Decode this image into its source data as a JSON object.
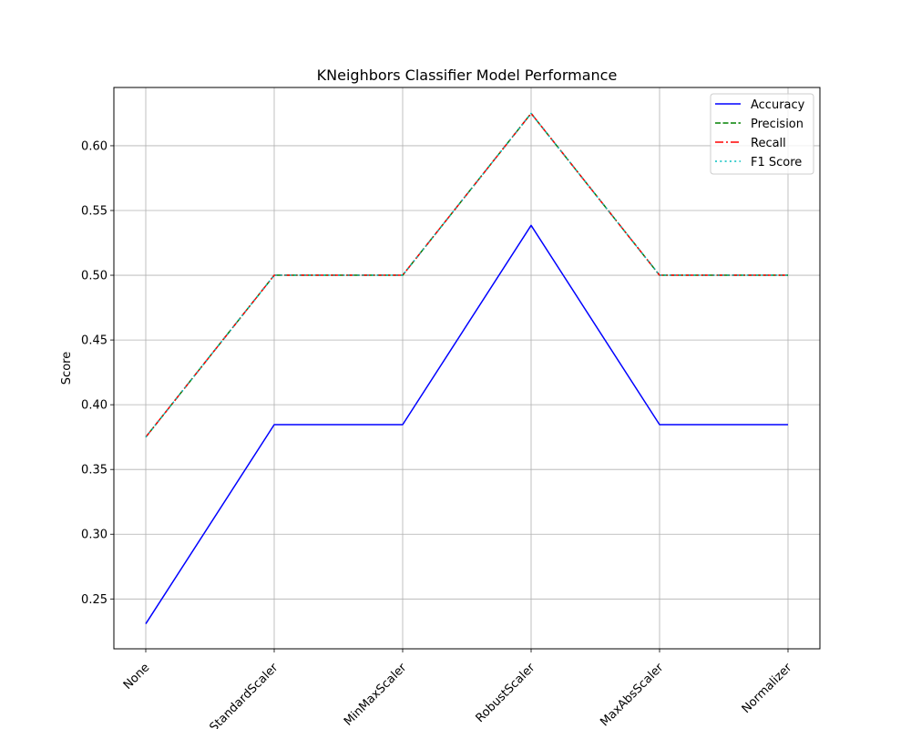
{
  "chart_data": {
    "type": "line",
    "title": "KNeighbors Classifier Model Performance",
    "xlabel": "",
    "ylabel": "Score",
    "categories": [
      "None",
      "StandardScaler",
      "MinMaxScaler",
      "RobustScaler",
      "MaxAbsScaler",
      "Normalizer"
    ],
    "ylim": [
      0.2115,
      0.645
    ],
    "yticks": [
      0.25,
      0.3,
      0.35,
      0.4,
      0.45,
      0.5,
      0.55,
      0.6
    ],
    "ytick_labels": [
      "0.25",
      "0.30",
      "0.35",
      "0.40",
      "0.45",
      "0.50",
      "0.55",
      "0.60"
    ],
    "grid": true,
    "legend_position": "top-right",
    "xtick_rotation_deg": 45,
    "series": [
      {
        "name": "Accuracy",
        "color": "#0000ff",
        "dash": "solid",
        "values": [
          0.2308,
          0.3846,
          0.3846,
          0.5385,
          0.3846,
          0.3846
        ]
      },
      {
        "name": "Precision",
        "color": "#008000",
        "dash": "dashed",
        "values": [
          0.375,
          0.5,
          0.5,
          0.625,
          0.5,
          0.5
        ]
      },
      {
        "name": "Recall",
        "color": "#ff0000",
        "dash": "dashdot",
        "values": [
          0.375,
          0.5,
          0.5,
          0.625,
          0.5,
          0.5
        ]
      },
      {
        "name": "F1 Score",
        "color": "#00bfbf",
        "dash": "dotted",
        "values": [
          0.375,
          0.5,
          0.5,
          0.625,
          0.5,
          0.5
        ]
      }
    ]
  }
}
